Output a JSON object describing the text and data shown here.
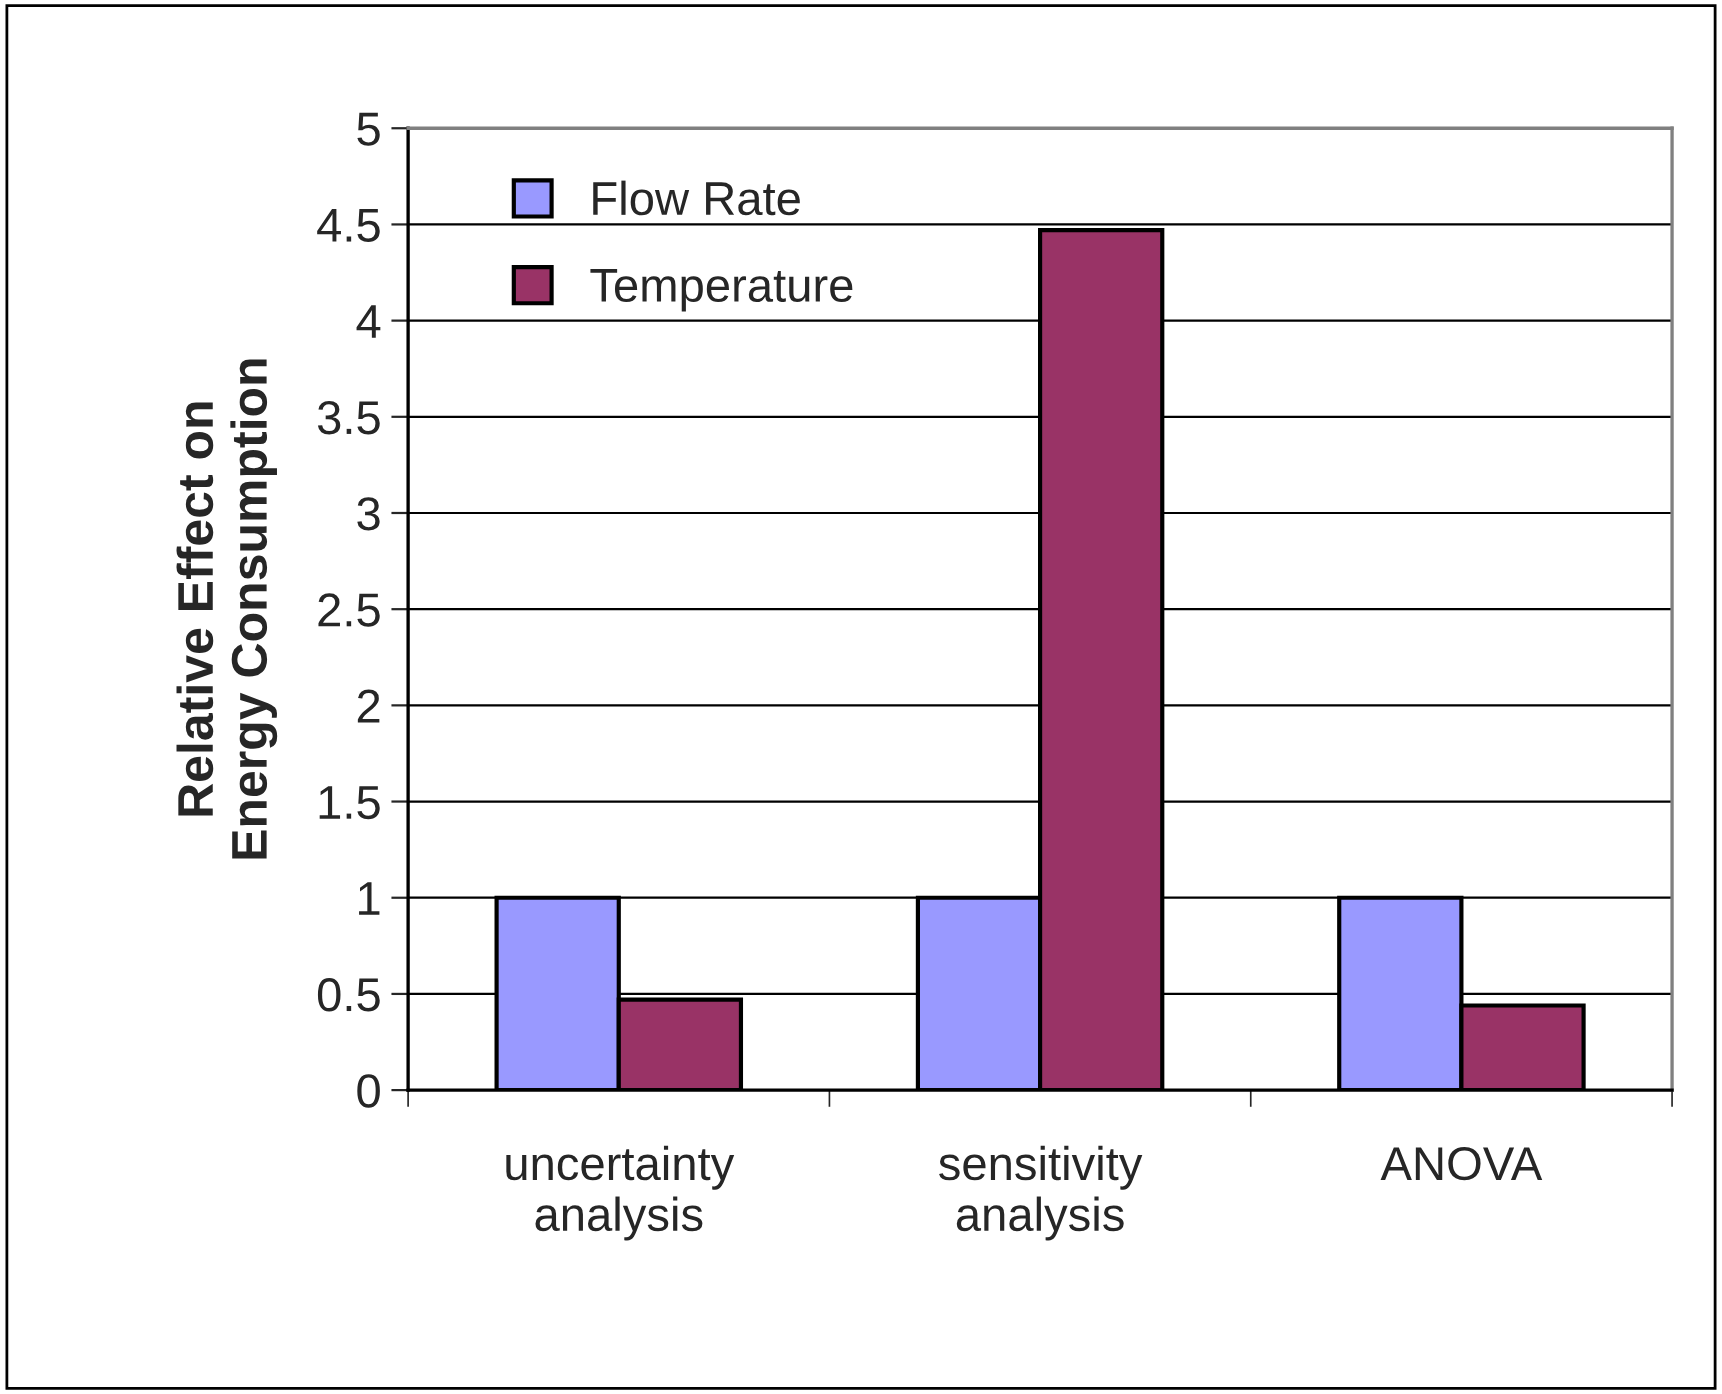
{
  "chart_data": {
    "type": "bar",
    "ylabel": "Relative Effect on\nEnergy Consumption",
    "categories": [
      "uncertainty\nanalysis",
      "sensitivity\nanalysis",
      "ANOVA"
    ],
    "series": [
      {
        "name": "Flow Rate",
        "color": "#9999ff",
        "values": [
          1,
          1,
          1
        ]
      },
      {
        "name": "Temperature",
        "color": "#993366",
        "values": [
          0.47,
          4.47,
          0.44
        ]
      }
    ],
    "ylim": [
      0,
      5
    ],
    "yticks": [
      0,
      0.5,
      1,
      1.5,
      2,
      2.5,
      3,
      3.5,
      4,
      4.5,
      5
    ],
    "grid": "y",
    "legend": "top left"
  }
}
